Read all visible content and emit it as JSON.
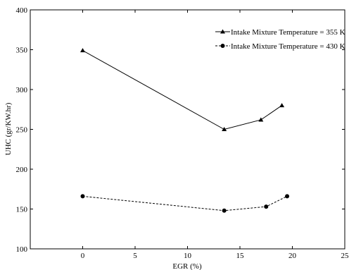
{
  "chart_data": {
    "type": "line",
    "xlabel": "EGR (%)",
    "ylabel": "UHC (gr/KW.hr)",
    "xlim": [
      -5,
      25
    ],
    "ylim": [
      100,
      400
    ],
    "xticks": [
      0,
      5,
      10,
      15,
      20,
      25
    ],
    "yticks": [
      100,
      150,
      200,
      250,
      300,
      350,
      400
    ],
    "grid": false,
    "legend_position": "top-right",
    "series": [
      {
        "name": "Intake Mixture Temperature = 355 K",
        "marker": "triangle",
        "line_style": "solid",
        "color": "#000000",
        "x": [
          0,
          13.5,
          17,
          19
        ],
        "y": [
          349,
          250,
          262,
          280
        ]
      },
      {
        "name": "Intake Mixture Temperature = 430 K",
        "marker": "circle",
        "line_style": "dashed",
        "color": "#000000",
        "x": [
          0,
          13.5,
          17.5,
          19.5
        ],
        "y": [
          166,
          148,
          153,
          166
        ]
      }
    ]
  }
}
